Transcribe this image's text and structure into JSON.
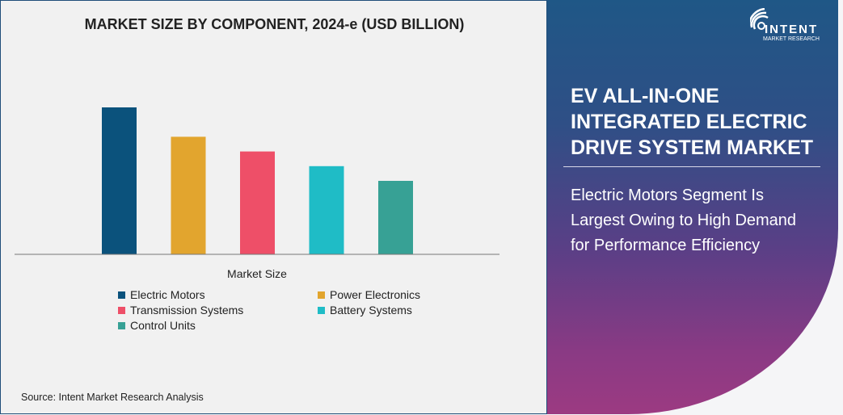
{
  "chart_data": {
    "type": "bar",
    "title": "MARKET SIZE BY COMPONENT, 2024-e (USD BILLION)",
    "xlabel": "Market Size",
    "ylabel": "",
    "categories": [
      "Electric Motors",
      "Power Electronics",
      "Transmission Systems",
      "Battery Systems",
      "Control Units"
    ],
    "values": [
      10.0,
      8.0,
      7.0,
      6.0,
      5.0
    ],
    "colors": [
      "#0b527c",
      "#e2a52e",
      "#ee4f68",
      "#1fbcc6",
      "#37a195"
    ],
    "ylim": [
      0,
      10.0
    ],
    "grid": false,
    "legend_position": "bottom"
  },
  "source": "Source: Intent Market Research Analysis",
  "panel": {
    "heading": "EV ALL-IN-ONE INTEGRATED ELECTRIC DRIVE SYSTEM MARKET",
    "subheading": "Electric Motors Segment Is Largest Owing to High Demand for Performance Efficiency",
    "logo": {
      "name": "INTENT",
      "sub": "MARKET RESEARCH",
      "tm": "TM"
    }
  }
}
